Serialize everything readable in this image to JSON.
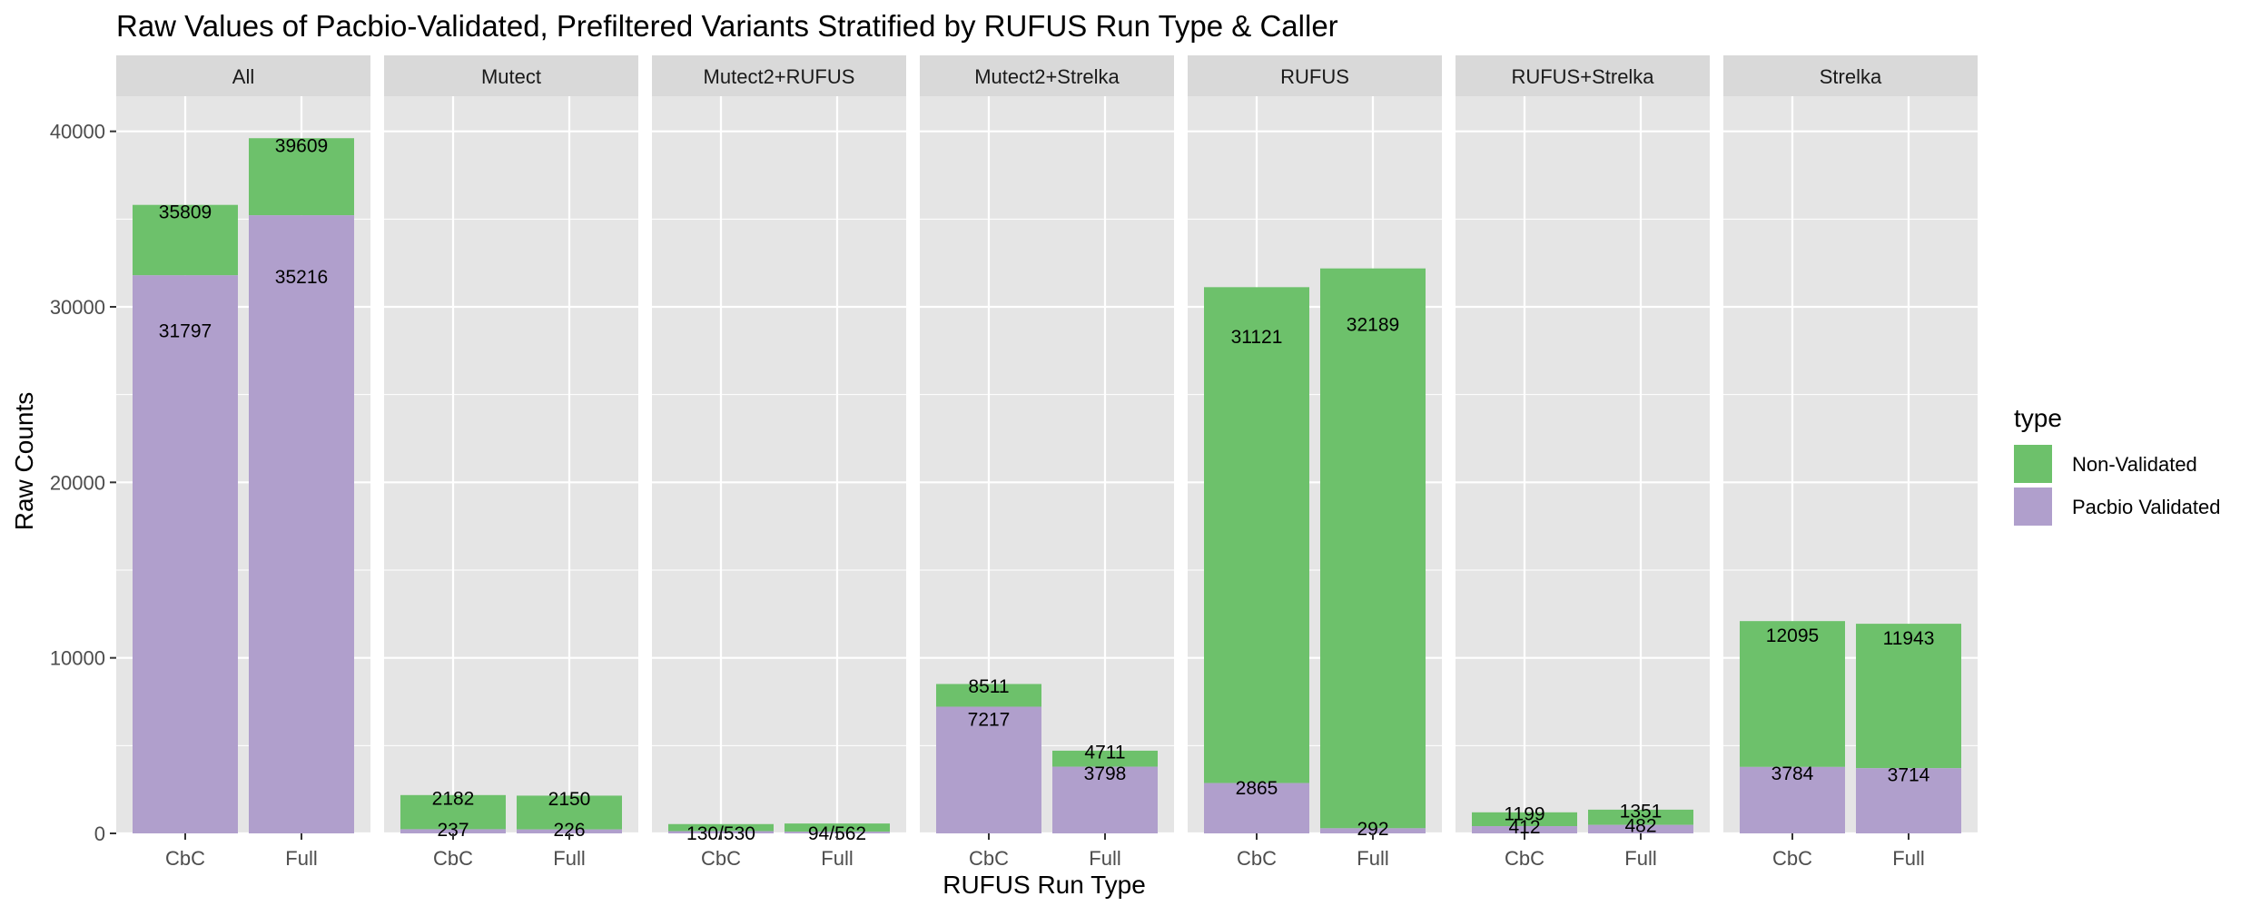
{
  "chart_data": {
    "type": "bar",
    "stacked": true,
    "title": "Raw Values of Pacbio-Validated, Prefiltered Variants Stratified by RUFUS Run Type & Caller",
    "xlabel": "RUFUS Run Type",
    "ylabel": "Raw Counts",
    "ylim": [
      0,
      42000
    ],
    "yticks": [
      "0",
      "10000",
      "20000",
      "30000",
      "40000"
    ],
    "ytick_values": [
      0,
      10000,
      20000,
      30000,
      40000
    ],
    "categories": [
      "CbC",
      "Full"
    ],
    "grid": true,
    "colors": {
      "Non-Validated": "#6dc16b",
      "Pacbio Validated": "#b09fcc",
      "panel": "#e5e5e5",
      "strip": "#d9d9d9",
      "grid": "#ffffff"
    },
    "legend": {
      "title": "type",
      "position": "right",
      "entries": [
        "Non-Validated",
        "Pacbio Validated"
      ]
    },
    "facets": [
      {
        "name": "All",
        "bars": [
          {
            "category": "CbC",
            "validated": 31797,
            "total": 35809,
            "validated_label": "31797",
            "total_label": "35809"
          },
          {
            "category": "Full",
            "validated": 35216,
            "total": 39609,
            "validated_label": "35216",
            "total_label": "39609"
          }
        ]
      },
      {
        "name": "Mutect",
        "bars": [
          {
            "category": "CbC",
            "validated": 237,
            "total": 2182,
            "validated_label": "237",
            "total_label": "2182"
          },
          {
            "category": "Full",
            "validated": 226,
            "total": 2150,
            "validated_label": "226",
            "total_label": "2150"
          }
        ]
      },
      {
        "name": "Mutect2+RUFUS",
        "bars": [
          {
            "category": "CbC",
            "validated": 130,
            "total": 530,
            "combined_label": "130/530"
          },
          {
            "category": "Full",
            "validated": 94,
            "total": 562,
            "combined_label": "94/562"
          }
        ]
      },
      {
        "name": "Mutect2+Strelka",
        "bars": [
          {
            "category": "CbC",
            "validated": 7217,
            "total": 8511,
            "validated_label": "7217",
            "total_label": "8511"
          },
          {
            "category": "Full",
            "validated": 3798,
            "total": 4711,
            "validated_label": "3798",
            "total_label": "4711"
          }
        ]
      },
      {
        "name": "RUFUS",
        "bars": [
          {
            "category": "CbC",
            "validated": 2865,
            "total": 31121,
            "validated_label": "2865",
            "total_label": "31121"
          },
          {
            "category": "Full",
            "validated": 292,
            "total": 32189,
            "validated_label": "292",
            "total_label": "32189"
          }
        ]
      },
      {
        "name": "RUFUS+Strelka",
        "bars": [
          {
            "category": "CbC",
            "validated": 412,
            "total": 1199,
            "validated_label": "412",
            "total_label": "1199"
          },
          {
            "category": "Full",
            "validated": 482,
            "total": 1351,
            "validated_label": "482",
            "total_label": "1351"
          }
        ]
      },
      {
        "name": "Strelka",
        "bars": [
          {
            "category": "CbC",
            "validated": 3784,
            "total": 12095,
            "validated_label": "3784",
            "total_label": "12095"
          },
          {
            "category": "Full",
            "validated": 3714,
            "total": 11943,
            "validated_label": "3714",
            "total_label": "11943"
          }
        ]
      }
    ]
  }
}
